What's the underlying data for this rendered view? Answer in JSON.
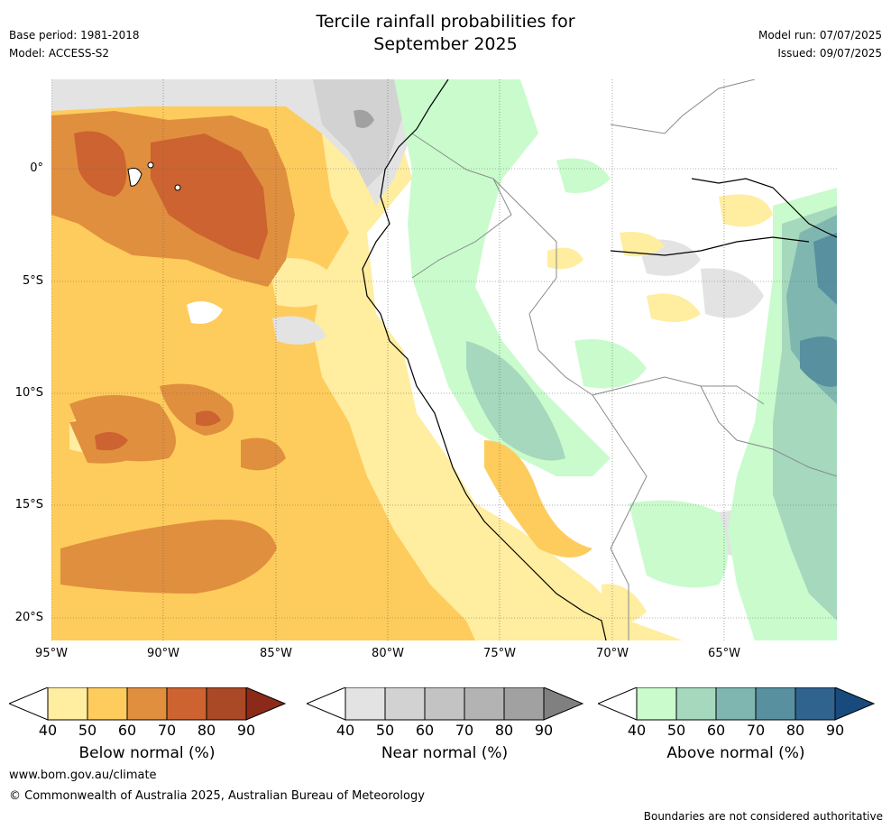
{
  "header": {
    "title_line1": "Tercile rainfall probabilities for",
    "title_line2": "September 2025",
    "base_period": "Base period: 1981-2018",
    "model": "Model: ACCESS-S2",
    "model_run": "Model run: 07/07/2025",
    "issued": "Issued: 09/07/2025"
  },
  "map": {
    "lat_labels": [
      "0°",
      "5°S",
      "10°S",
      "15°S",
      "20°S"
    ],
    "lon_labels": [
      "95°W",
      "90°W",
      "85°W",
      "80°W",
      "75°W",
      "70°W",
      "65°W"
    ]
  },
  "colorbars": [
    {
      "label": "Below normal (%)",
      "ticks": [
        "40",
        "50",
        "60",
        "70",
        "80",
        "90"
      ],
      "colors": [
        "#ffeda0",
        "#fecc5c",
        "#e08f3e",
        "#cc6330",
        "#a94926",
        "#8c2a1a"
      ]
    },
    {
      "label": "Near normal (%)",
      "ticks": [
        "40",
        "50",
        "60",
        "70",
        "80",
        "90"
      ],
      "colors": [
        "#e3e3e3",
        "#d2d2d2",
        "#c3c3c3",
        "#b3b3b3",
        "#a1a1a1",
        "#808080"
      ]
    },
    {
      "label": "Above normal (%)",
      "ticks": [
        "40",
        "50",
        "60",
        "70",
        "80",
        "90"
      ],
      "colors": [
        "#c9fbcd",
        "#a5d8bc",
        "#7fb7b0",
        "#5890a0",
        "#31638f",
        "#184a7d"
      ]
    }
  ],
  "footer": {
    "url": "www.bom.gov.au/climate",
    "copyright": "© Commonwealth of Australia 2025, Australian Bureau of Meteorology",
    "disclaimer": "Boundaries are not considered authoritative"
  }
}
